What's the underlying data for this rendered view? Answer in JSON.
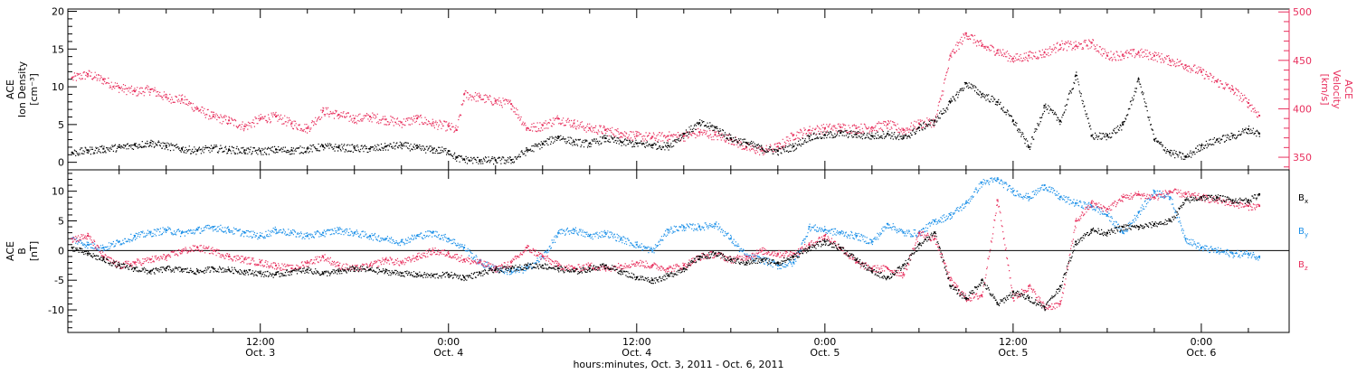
{
  "footer": {
    "time_label": "hours:minutes, Oct.  3, 2011 - Oct.  6, 2011"
  },
  "colors": {
    "axis": "#000000",
    "density": "#000000",
    "velocity": "#e8305e",
    "bx": "#000000",
    "by": "#1a8fe8",
    "bz": "#e8305e"
  },
  "chart_data": [
    {
      "type": "scatter",
      "panel": "plasma",
      "ylabel_left": "ACE\nIon Density\n[cm⁻³]",
      "ylabel_right": "ACE\nVelocity\n[km/s]",
      "left_axis": {
        "ylim": [
          -1,
          20.3
        ],
        "ticks": [
          0,
          5,
          10,
          15,
          20
        ]
      },
      "right_axis": {
        "ylim": [
          337,
          503
        ],
        "ticks": [
          350,
          400,
          450,
          500
        ]
      },
      "x_ticks": [
        {
          "line1": "12:00",
          "line2": "Oct. 3",
          "hours": 12
        },
        {
          "line1": "0:00",
          "line2": "Oct. 4",
          "hours": 24
        },
        {
          "line1": "12:00",
          "line2": "Oct. 4",
          "hours": 36
        },
        {
          "line1": "0:00",
          "line2": "Oct. 5",
          "hours": 48
        },
        {
          "line1": "12:00",
          "line2": "Oct. 5",
          "hours": 60
        },
        {
          "line1": "0:00",
          "line2": "Oct. 6",
          "hours": 72
        }
      ],
      "x_range_hours": [
        -0.27,
        77.6
      ],
      "series": [
        {
          "name": "Ion Density",
          "axis": "left",
          "color": "#000000",
          "x_hours": [
            0,
            1,
            2,
            3,
            4,
            5,
            6,
            7,
            8,
            9,
            10,
            11,
            12,
            13,
            14,
            15,
            16,
            17,
            18,
            19,
            20,
            21,
            22,
            23,
            24,
            24.5,
            25,
            26,
            27,
            28,
            29,
            30,
            31,
            32,
            33,
            34,
            35,
            36,
            37,
            38,
            39,
            40,
            41,
            42,
            43,
            44,
            45,
            46,
            47,
            48,
            49,
            50,
            51,
            52,
            53,
            54,
            55,
            56,
            57,
            58,
            59,
            60,
            61,
            62,
            63,
            64,
            65,
            66,
            67,
            68,
            69,
            70,
            71,
            72,
            73,
            74,
            75,
            75.7
          ],
          "values": [
            1.3,
            1.6,
            1.8,
            2.0,
            2.3,
            2.6,
            2.2,
            1.8,
            1.6,
            1.9,
            1.7,
            1.6,
            1.5,
            1.7,
            1.6,
            1.8,
            2.1,
            2.0,
            1.9,
            1.8,
            2.1,
            2.3,
            1.9,
            1.7,
            1.5,
            0.6,
            0.4,
            0.3,
            0.3,
            0.3,
            1.6,
            2.5,
            3.4,
            2.7,
            2.5,
            3.2,
            2.7,
            2.5,
            2.3,
            2.2,
            3.8,
            5.2,
            4.6,
            3.2,
            2.6,
            1.8,
            1.5,
            2.1,
            3.4,
            3.6,
            3.9,
            3.7,
            3.5,
            3.8,
            3.2,
            4.6,
            5.5,
            8.0,
            10.5,
            9.0,
            8.0,
            5.5,
            2.0,
            7.5,
            5.5,
            11.5,
            3.5,
            3.5,
            5.0,
            11.0,
            3.0,
            1.3,
            0.7,
            2.2,
            3.0,
            3.5,
            4.4,
            3.8
          ]
        },
        {
          "name": "Velocity",
          "axis": "right",
          "color": "#e8305e",
          "x_hours": [
            0,
            1,
            2,
            3,
            4,
            5,
            6,
            7,
            8,
            9,
            10,
            11,
            12,
            13,
            14,
            15,
            16,
            17,
            18,
            19,
            20,
            21,
            22,
            23,
            24,
            24.5,
            25,
            26,
            27,
            28,
            29,
            30,
            31,
            32,
            33,
            34,
            35,
            36,
            37,
            38,
            39,
            40,
            41,
            42,
            43,
            44,
            45,
            46,
            47,
            48,
            49,
            50,
            51,
            52,
            53,
            54,
            55,
            56,
            57,
            58,
            59,
            60,
            61,
            62,
            63,
            64,
            65,
            66,
            67,
            68,
            69,
            70,
            71,
            72,
            73,
            74,
            75,
            75.7
          ],
          "values": [
            432,
            436,
            430,
            422,
            418,
            420,
            412,
            410,
            400,
            392,
            388,
            382,
            390,
            392,
            385,
            380,
            398,
            394,
            390,
            392,
            389,
            386,
            390,
            385,
            382,
            378,
            415,
            412,
            408,
            405,
            380,
            383,
            390,
            385,
            380,
            378,
            375,
            372,
            371,
            372,
            372,
            376,
            373,
            369,
            360,
            357,
            361,
            373,
            378,
            380,
            381,
            380,
            381,
            384,
            378,
            385,
            387,
            455,
            478,
            465,
            460,
            452,
            455,
            458,
            466,
            465,
            468,
            455,
            456,
            458,
            455,
            450,
            445,
            438,
            428,
            420,
            406,
            393
          ]
        }
      ]
    },
    {
      "type": "scatter",
      "panel": "magnetic",
      "ylabel_left": "ACE\nB\n[nT]",
      "left_axis": {
        "ylim": [
          -13.8,
          13.6
        ],
        "ticks": [
          -10,
          -5,
          0,
          5,
          10
        ],
        "zero_line": true
      },
      "x_range_hours": [
        -0.27,
        77.6
      ],
      "legend": [
        {
          "label": "B",
          "sub": "x",
          "color": "#000000"
        },
        {
          "label": "B",
          "sub": "y",
          "color": "#1a8fe8"
        },
        {
          "label": "B",
          "sub": "z",
          "color": "#e8305e"
        }
      ],
      "series": [
        {
          "name": "Bx",
          "color": "#000000",
          "x_hours": [
            0,
            1,
            2,
            3,
            4,
            5,
            6,
            7,
            8,
            9,
            10,
            11,
            12,
            13,
            14,
            15,
            16,
            17,
            18,
            19,
            20,
            21,
            22,
            23,
            24,
            25,
            26,
            27,
            28,
            29,
            30,
            31,
            32,
            33,
            34,
            35,
            36,
            37,
            38,
            39,
            40,
            41,
            42,
            43,
            44,
            45,
            46,
            47,
            48,
            49,
            50,
            51,
            52,
            53,
            54,
            55,
            56,
            57,
            58,
            59,
            60,
            61,
            62,
            63,
            64,
            65,
            66,
            67,
            68,
            69,
            70,
            71,
            72,
            73,
            74,
            75,
            75.7
          ],
          "values": [
            0.5,
            -0.5,
            -1.5,
            -2.5,
            -3.0,
            -3.5,
            -3.0,
            -3.2,
            -3.5,
            -3.0,
            -3.2,
            -3.5,
            -3.8,
            -4.0,
            -3.5,
            -3.2,
            -3.8,
            -3.5,
            -3.0,
            -3.2,
            -3.5,
            -3.8,
            -4.0,
            -4.2,
            -4.0,
            -4.5,
            -3.8,
            -3.2,
            -3.0,
            -2.5,
            -2.5,
            -3.0,
            -3.5,
            -3.0,
            -2.5,
            -3.5,
            -4.5,
            -5.0,
            -4.2,
            -3.0,
            -1.0,
            -0.5,
            -1.5,
            -2.0,
            -1.5,
            -2.0,
            -1.0,
            0.5,
            1.5,
            0.5,
            -1.5,
            -3.5,
            -4.5,
            -2.5,
            1.0,
            3.0,
            -6.0,
            -8.0,
            -5.0,
            -9.0,
            -7.0,
            -8.0,
            -9.5,
            -6.0,
            1.5,
            3.5,
            3.0,
            4.0,
            4.0,
            4.5,
            5.0,
            8.5,
            9.0,
            9.0,
            8.5,
            8.5,
            9.5
          ]
        },
        {
          "name": "By",
          "color": "#1a8fe8",
          "x_hours": [
            0,
            1,
            2,
            3,
            4,
            5,
            6,
            7,
            8,
            9,
            10,
            11,
            12,
            13,
            14,
            15,
            16,
            17,
            18,
            19,
            20,
            21,
            22,
            23,
            24,
            25,
            26,
            27,
            28,
            29,
            30,
            31,
            32,
            33,
            34,
            35,
            36,
            37,
            38,
            39,
            40,
            41,
            42,
            43,
            44,
            45,
            46,
            47,
            48,
            49,
            50,
            51,
            52,
            53,
            54,
            55,
            56,
            57,
            58,
            59,
            60,
            61,
            62,
            63,
            64,
            65,
            66,
            67,
            68,
            69,
            70,
            71,
            72,
            73,
            74,
            75,
            75.7
          ],
          "values": [
            2.0,
            1.0,
            0.5,
            1.5,
            2.5,
            3.0,
            3.5,
            3.0,
            3.5,
            4.0,
            3.5,
            3.0,
            2.5,
            3.5,
            3.0,
            2.5,
            3.0,
            3.5,
            3.0,
            2.5,
            2.0,
            1.5,
            2.5,
            3.0,
            2.0,
            0.5,
            -2.0,
            -3.0,
            -3.5,
            -3.0,
            -1.0,
            3.0,
            3.5,
            2.5,
            3.0,
            2.0,
            1.0,
            0.0,
            3.5,
            4.0,
            4.0,
            4.5,
            2.0,
            -1.0,
            -1.5,
            -2.5,
            -2.0,
            4.0,
            3.5,
            3.0,
            2.5,
            1.5,
            4.5,
            3.0,
            3.0,
            5.0,
            6.0,
            8.0,
            11.5,
            12.0,
            10.0,
            9.0,
            11.0,
            9.0,
            8.0,
            7.5,
            6.0,
            3.0,
            6.5,
            10.0,
            9.0,
            2.0,
            0.5,
            0.0,
            -0.5,
            -0.5,
            -1.0
          ]
        },
        {
          "name": "Bz",
          "color": "#e8305e",
          "x_hours": [
            0,
            1,
            2,
            3,
            4,
            5,
            6,
            7,
            8,
            9,
            10,
            11,
            12,
            13,
            14,
            15,
            16,
            17,
            18,
            19,
            20,
            21,
            22,
            23,
            24,
            25,
            26,
            27,
            28,
            29,
            30,
            31,
            32,
            33,
            34,
            35,
            36,
            37,
            38,
            39,
            40,
            41,
            42,
            43,
            44,
            45,
            46,
            47,
            48,
            49,
            50,
            51,
            52,
            53,
            54,
            55,
            56,
            57,
            58,
            59,
            60,
            61,
            62,
            63,
            64,
            65,
            66,
            67,
            68,
            69,
            70,
            71,
            72,
            73,
            74,
            75,
            75.7
          ],
          "values": [
            2.0,
            2.5,
            -1.0,
            -2.5,
            -2.0,
            -1.5,
            -1.0,
            0.0,
            0.5,
            0.0,
            -1.0,
            -1.5,
            -2.0,
            -2.5,
            -3.0,
            -2.0,
            -1.0,
            -2.5,
            -3.0,
            -2.5,
            -1.5,
            -2.0,
            -1.0,
            0.0,
            -0.5,
            -1.5,
            -2.0,
            -3.0,
            -2.0,
            0.5,
            -1.0,
            -2.5,
            -3.0,
            -2.5,
            -3.0,
            -2.5,
            -2.0,
            -2.5,
            -3.0,
            -2.5,
            -1.0,
            -0.5,
            -1.5,
            -1.0,
            0.0,
            -0.5,
            -0.5,
            1.0,
            2.5,
            0.5,
            -2.0,
            -3.0,
            -3.0,
            -4.0,
            3.0,
            2.0,
            -5.0,
            -8.0,
            -7.5,
            8.5,
            -8.0,
            -6.0,
            -9.5,
            -9.0,
            5.0,
            8.0,
            7.0,
            9.0,
            9.5,
            9.0,
            10.0,
            9.5,
            9.0,
            8.5,
            8.0,
            7.5,
            7.5
          ]
        }
      ]
    }
  ]
}
